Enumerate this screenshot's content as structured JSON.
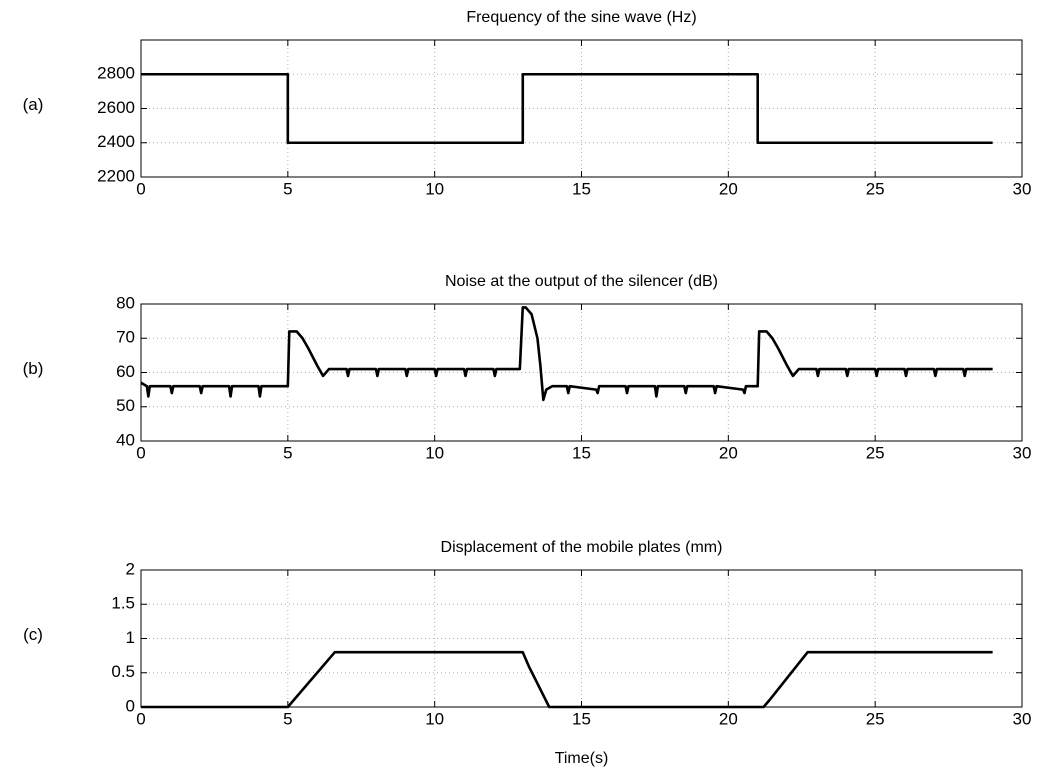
{
  "chart_data": [
    {
      "type": "line",
      "panel_label": "(a)",
      "title": "Frequency of the sine wave (Hz)",
      "x": [
        0,
        5,
        5,
        13,
        13,
        21,
        21,
        29
      ],
      "series": [
        {
          "color": "#000000",
          "values": [
            2800,
            2800,
            2400,
            2400,
            2800,
            2800,
            2400,
            2400
          ]
        }
      ],
      "xlim": [
        0,
        30
      ],
      "xticks": [
        0,
        5,
        10,
        15,
        20,
        25,
        30
      ],
      "ylim": [
        2200,
        3000
      ],
      "yticks": [
        2200,
        2400,
        2600,
        2800
      ],
      "grid": true
    },
    {
      "type": "line",
      "panel_label": "(b)",
      "title": "Noise at the output of the silencer (dB)",
      "x": [
        0,
        0.2,
        0.25,
        0.3,
        1,
        1.05,
        1.1,
        2,
        2.05,
        2.1,
        3,
        3.05,
        3.1,
        4,
        4.05,
        4.1,
        4.9,
        5.0,
        5.05,
        5.3,
        5.5,
        5.7,
        6.0,
        6.2,
        6.4,
        7,
        7.05,
        7.1,
        8,
        8.05,
        8.1,
        9,
        9.05,
        9.1,
        10,
        10.05,
        10.1,
        11,
        11.05,
        11.1,
        12,
        12.05,
        12.1,
        12.9,
        13.0,
        13.1,
        13.3,
        13.5,
        13.6,
        13.7,
        13.8,
        14,
        14.5,
        14.55,
        14.6,
        15.5,
        15.55,
        15.6,
        16.5,
        16.55,
        16.6,
        17.5,
        17.55,
        17.6,
        18.5,
        18.55,
        18.6,
        19.5,
        19.55,
        19.6,
        20.5,
        20.55,
        20.6,
        21.0,
        21.05,
        21.3,
        21.5,
        21.7,
        22,
        22.2,
        22.4,
        23,
        23.05,
        23.1,
        24,
        24.05,
        24.1,
        25,
        25.05,
        25.1,
        26,
        26.05,
        26.1,
        27,
        27.05,
        27.1,
        28,
        28.05,
        28.1,
        29
      ],
      "series": [
        {
          "color": "#000000",
          "values": [
            57,
            56,
            53,
            56,
            56,
            54,
            56,
            56,
            54,
            56,
            56,
            53,
            56,
            56,
            53,
            56,
            56,
            56,
            72,
            72,
            70,
            67,
            62,
            59,
            61,
            61,
            59,
            61,
            61,
            59,
            61,
            61,
            59,
            61,
            61,
            59,
            61,
            61,
            59,
            61,
            61,
            59,
            61,
            61,
            79,
            79,
            77,
            70,
            62,
            52,
            55,
            56,
            56,
            54,
            56,
            55,
            54,
            56,
            56,
            54,
            56,
            56,
            53,
            56,
            56,
            54,
            56,
            56,
            54,
            56,
            55,
            54,
            56,
            56,
            72,
            72,
            70,
            67,
            62,
            59,
            61,
            61,
            59,
            61,
            61,
            59,
            61,
            61,
            59,
            61,
            61,
            59,
            61,
            61,
            59,
            61,
            61,
            59,
            61,
            61
          ]
        }
      ],
      "xlim": [
        0,
        30
      ],
      "xticks": [
        0,
        5,
        10,
        15,
        20,
        25,
        30
      ],
      "ylim": [
        40,
        80
      ],
      "yticks": [
        40,
        50,
        60,
        70,
        80
      ],
      "grid": true
    },
    {
      "type": "line",
      "panel_label": "(c)",
      "title": "Displacement of the mobile plates (mm)",
      "x_label": "Time(s)",
      "x": [
        0,
        5,
        5.2,
        6.6,
        13,
        13.2,
        13.9,
        21.2,
        21.4,
        22.7,
        29
      ],
      "series": [
        {
          "color": "#000000",
          "values": [
            0,
            0,
            0.1,
            0.8,
            0.8,
            0.6,
            0,
            0,
            0.1,
            0.8,
            0.8
          ]
        }
      ],
      "xlim": [
        0,
        30
      ],
      "xticks": [
        0,
        5,
        10,
        15,
        20,
        25,
        30
      ],
      "ylim": [
        0,
        2
      ],
      "yticks": [
        0,
        0.5,
        1,
        1.5,
        2
      ],
      "grid": true
    }
  ]
}
